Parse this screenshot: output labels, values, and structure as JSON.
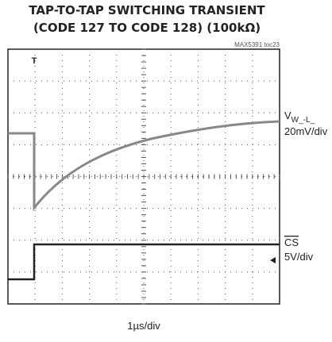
{
  "header": {
    "title_lines": [
      "TAP-TO-TAP SWITCHING TRANSIENT",
      "(CODE 127 TO CODE 128) (100kΩ)"
    ],
    "figure_id": "MAX5391 toc23"
  },
  "channels": [
    {
      "name": "V",
      "subscript": "W_-L_",
      "scale": "20mV/div"
    },
    {
      "name": "CS",
      "scale": "5V/div"
    }
  ],
  "x_scale": "1µs/div"
}
